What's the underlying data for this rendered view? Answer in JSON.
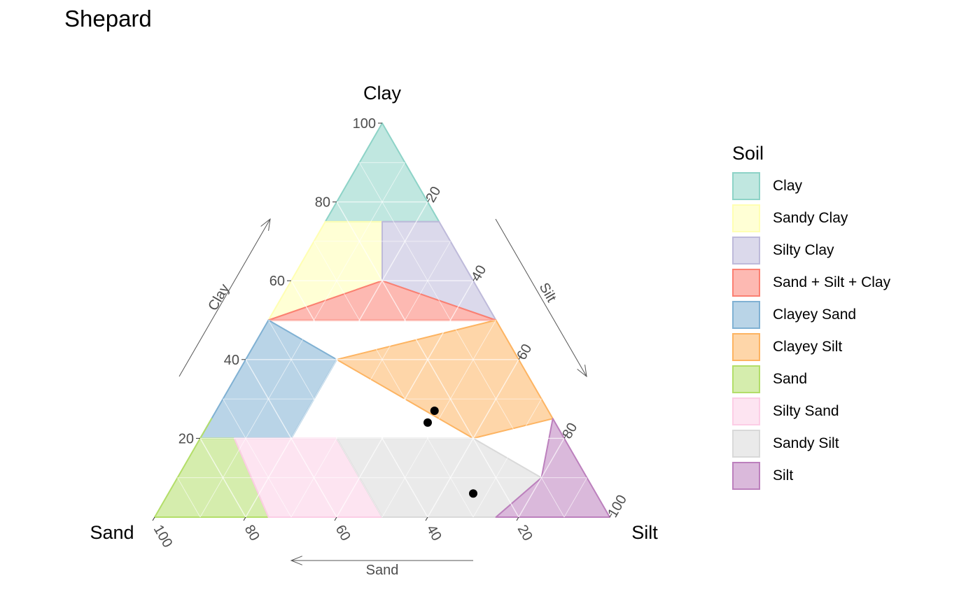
{
  "title": "Shepard",
  "chart_data": {
    "type": "ternary",
    "title": "Shepard",
    "axes": {
      "top": {
        "label": "Clay",
        "direction_label": "Clay",
        "ticks": [
          "20",
          "40",
          "60",
          "80",
          "100"
        ]
      },
      "left": {
        "label": "Sand",
        "direction_label": "Sand",
        "ticks": [
          "20",
          "40",
          "60",
          "80",
          "100"
        ]
      },
      "right": {
        "label": "Silt",
        "direction_label": "Silt",
        "ticks": [
          "20",
          "40",
          "60",
          "80",
          "100"
        ]
      }
    },
    "legend": {
      "title": "Soil",
      "position": "right"
    },
    "regions": [
      {
        "name": "Clay",
        "fill": "#8DD3C7",
        "stroke": "#8DD3C7",
        "vertices": [
          [
            0,
            100,
            0
          ],
          [
            25,
            75,
            0
          ],
          [
            0,
            75,
            25
          ]
        ]
      },
      {
        "name": "Sandy Clay",
        "fill": "#FFFFB3",
        "stroke": "#FFFFB3",
        "vertices": [
          [
            25,
            75,
            0
          ],
          [
            50,
            50,
            0
          ],
          [
            20,
            60,
            20
          ],
          [
            12.5,
            75,
            12.5
          ]
        ]
      },
      {
        "name": "Silty Clay",
        "fill": "#BEBADA",
        "stroke": "#BEBADA",
        "vertices": [
          [
            12.5,
            75,
            12.5
          ],
          [
            0,
            75,
            25
          ],
          [
            0,
            50,
            50
          ],
          [
            20,
            60,
            20
          ]
        ]
      },
      {
        "name": "Sand + Silt + Clay",
        "fill": "#FB8072",
        "stroke": "#FB8072",
        "vertices": [
          [
            20,
            60,
            20
          ],
          [
            50,
            50,
            0
          ],
          [
            0,
            50,
            50
          ]
        ]
      },
      {
        "name": "Clayey Sand",
        "fill": "#80B1D3",
        "stroke": "#80B1D3",
        "vertices": [
          [
            50,
            50,
            0
          ],
          [
            75,
            25,
            0
          ],
          [
            80,
            20,
            0
          ],
          [
            72.5,
            20,
            7.5
          ],
          [
            60,
            20,
            20
          ],
          [
            40,
            40,
            20
          ]
        ]
      },
      {
        "name": "Clayey Silt",
        "fill": "#FDB462",
        "stroke": "#FDB462",
        "vertices": [
          [
            0,
            50,
            50
          ],
          [
            0,
            25,
            75
          ],
          [
            20,
            20,
            60
          ],
          [
            40,
            40,
            20
          ]
        ]
      },
      {
        "name": "Sand",
        "fill": "#B3DE69",
        "stroke": "#B3DE69",
        "vertices": [
          [
            100,
            0,
            0
          ],
          [
            75,
            25,
            0
          ],
          [
            80,
            20,
            0
          ],
          [
            72.5,
            20,
            7.5
          ],
          [
            75,
            0,
            25
          ]
        ]
      },
      {
        "name": "Silty Sand",
        "fill": "#FCCDE5",
        "stroke": "#FCCDE5",
        "vertices": [
          [
            72.5,
            20,
            7.5
          ],
          [
            60,
            20,
            20
          ],
          [
            50,
            20,
            30
          ],
          [
            50,
            0,
            50
          ],
          [
            75,
            0,
            25
          ]
        ]
      },
      {
        "name": "Sandy Silt",
        "fill": "#D9D9D9",
        "stroke": "#D9D9D9",
        "vertices": [
          [
            50,
            20,
            30
          ],
          [
            20,
            20,
            60
          ],
          [
            10,
            10,
            80
          ],
          [
            25,
            0,
            75
          ],
          [
            50,
            0,
            50
          ]
        ]
      },
      {
        "name": "Silt",
        "fill": "#BC80BD",
        "stroke": "#BC80BD",
        "vertices": [
          [
            0,
            0,
            100
          ],
          [
            0,
            25,
            75
          ],
          [
            10,
            10,
            80
          ],
          [
            25,
            0,
            75
          ]
        ]
      }
    ],
    "points": [
      {
        "sand": 25,
        "clay": 27,
        "silt": 48
      },
      {
        "sand": 28,
        "clay": 24,
        "silt": 48
      },
      {
        "sand": 27,
        "clay": 6,
        "silt": 67
      }
    ]
  }
}
